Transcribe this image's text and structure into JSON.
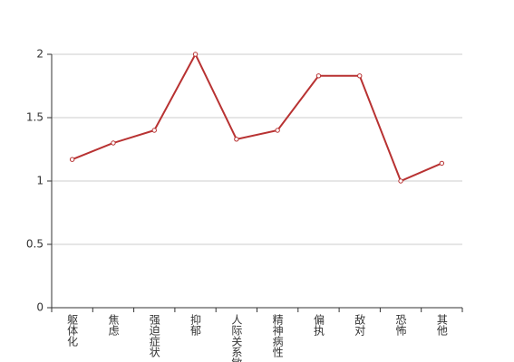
{
  "chart_data": {
    "type": "line",
    "categories": [
      "躯体化",
      "焦虑",
      "强迫症状",
      "抑郁",
      "人际关系敏感",
      "精神病性",
      "偏执",
      "敌对",
      "恐怖",
      "其他"
    ],
    "values": [
      1.17,
      1.3,
      1.4,
      2,
      1.33,
      1.4,
      1.83,
      1.83,
      1.0,
      1.14
    ],
    "color": "#b83232",
    "ylim": [
      0,
      2
    ],
    "yticks": [
      0,
      0.5,
      1,
      1.5,
      2
    ],
    "grid": true
  }
}
